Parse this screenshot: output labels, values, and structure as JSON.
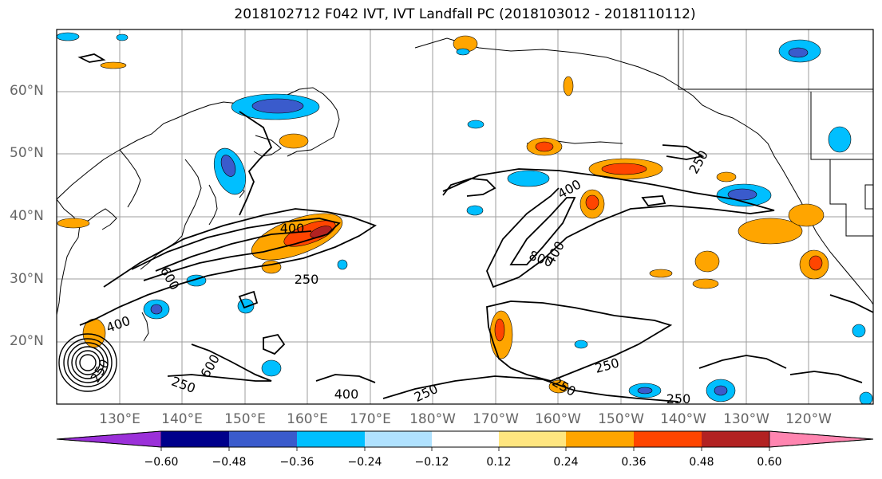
{
  "title": "2018102712 F042 IVT, IVT Landfall PC (2018103012 - 2018110112)",
  "lat_labels": [
    "60°N",
    "50°N",
    "40°N",
    "30°N",
    "20°N"
  ],
  "lon_labels": [
    "130°E",
    "140°E",
    "150°E",
    "160°E",
    "170°E",
    "180°W",
    "170°W",
    "160°W",
    "150°W",
    "140°W",
    "130°W",
    "120°W"
  ],
  "contour_labels": [
    "400",
    "250",
    "250",
    "400",
    "800",
    "250",
    "400",
    "250",
    "250",
    "250",
    "400",
    "600",
    "600",
    "250",
    "250",
    "400"
  ],
  "colorbar": {
    "ticks": [
      "−0.60",
      "−0.48",
      "−0.36",
      "−0.24",
      "−0.12",
      "0.12",
      "0.24",
      "0.36",
      "0.48",
      "0.60"
    ],
    "colors": [
      "#9b30d9",
      "#00008b",
      "#3a5bcc",
      "#00bfff",
      "#b0e2ff",
      "#ffffff",
      "#ffe680",
      "#ffa500",
      "#ff4500",
      "#b22222",
      "#ff85b0"
    ]
  }
}
